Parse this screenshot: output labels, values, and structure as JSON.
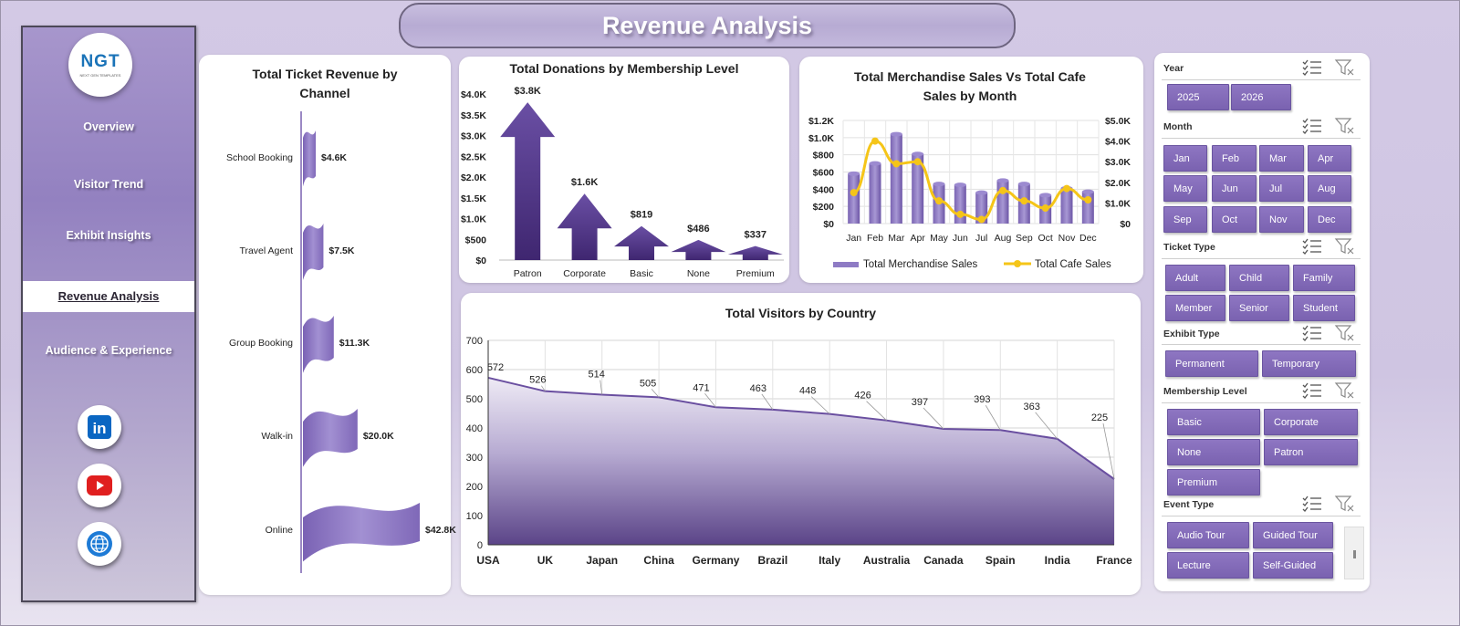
{
  "header": {
    "title": "Revenue Analysis"
  },
  "logo": {
    "text": "NGT",
    "subtitle": "NEXT GEN TEMPLATES"
  },
  "sidebar": {
    "items": [
      {
        "label": "Overview",
        "active": false
      },
      {
        "label": "Visitor Trend",
        "active": false
      },
      {
        "label": "Exhibit Insights",
        "active": false
      },
      {
        "label": "Revenue Analysis",
        "active": true
      },
      {
        "label": "Audience & Experience",
        "active": false
      }
    ],
    "social": [
      "linkedin-icon",
      "youtube-icon",
      "globe-icon"
    ]
  },
  "colors": {
    "accent": "#6a4fa0",
    "dark_purple": "#4b2f80",
    "cafe_line": "#f5c518",
    "background": "#d3c9e5"
  },
  "chart_data": [
    {
      "id": "ticket",
      "type": "bar",
      "title": "Total Ticket Revenue  by Channel",
      "categories": [
        "School Booking",
        "Travel Agent",
        "Group Booking",
        "Walk-in",
        "Online"
      ],
      "values": [
        4600,
        7500,
        11300,
        20000,
        42800
      ],
      "data_labels": [
        "$4.6K",
        "$7.5K",
        "$11.3K",
        "$20.0K",
        "$42.8K"
      ],
      "orientation": "horizontal"
    },
    {
      "id": "donations",
      "type": "bar",
      "title": "Total Donations  by Membership Level",
      "categories": [
        "Patron",
        "Corporate",
        "Basic",
        "None",
        "Premium"
      ],
      "values": [
        3800,
        1600,
        819,
        486,
        337
      ],
      "data_labels": [
        "$3.8K",
        "$1.6K",
        "$819",
        "$486",
        "$337"
      ],
      "ylim": [
        0,
        4000
      ],
      "yticks": [
        "$0",
        "$500",
        "$1.0K",
        "$1.5K",
        "$2.0K",
        "$2.5K",
        "$3.0K",
        "$3.5K",
        "$4.0K"
      ]
    },
    {
      "id": "merch",
      "type": "bar",
      "title": "Total Merchandise  Sales Vs Total Cafe Sales by Month",
      "categories": [
        "Jan",
        "Feb",
        "Mar",
        "Apr",
        "May",
        "Jun",
        "Jul",
        "Aug",
        "Sep",
        "Oct",
        "Nov",
        "Dec"
      ],
      "series": [
        {
          "name": "Total Merchandise Sales",
          "type": "bar",
          "axis": "left",
          "values": [
            580,
            700,
            1040,
            810,
            460,
            450,
            360,
            500,
            460,
            330,
            410,
            370
          ]
        },
        {
          "name": "Total Cafe Sales",
          "type": "line",
          "axis": "right",
          "values": [
            1500,
            4000,
            2900,
            3000,
            1100,
            450,
            200,
            1600,
            1100,
            750,
            1700,
            1150
          ]
        }
      ],
      "ylim": [
        0,
        1200
      ],
      "y2lim": [
        0,
        5000
      ],
      "yticks": [
        "$0",
        "$200",
        "$400",
        "$600",
        "$800",
        "$1.0K",
        "$1.2K"
      ],
      "y2ticks": [
        "$0",
        "$1.0K",
        "$2.0K",
        "$3.0K",
        "$4.0K",
        "$5.0K"
      ]
    },
    {
      "id": "visitors",
      "type": "area",
      "title": "Total Visitors by Country",
      "categories": [
        "USA",
        "UK",
        "Japan",
        "China",
        "Germany",
        "Brazil",
        "Italy",
        "Australia",
        "Canada",
        "Spain",
        "India",
        "France"
      ],
      "values": [
        572,
        526,
        514,
        505,
        471,
        463,
        448,
        426,
        397,
        393,
        363,
        225
      ],
      "ylim": [
        0,
        700
      ],
      "yticks": [
        "0",
        "100",
        "200",
        "300",
        "400",
        "500",
        "600",
        "700"
      ]
    }
  ],
  "slicers": [
    {
      "title": "Year",
      "items": [
        "2025",
        "2026"
      ]
    },
    {
      "title": "Month",
      "items": [
        "Jan",
        "Feb",
        "Mar",
        "Apr",
        "May",
        "Jun",
        "Jul",
        "Aug",
        "Sep",
        "Oct",
        "Nov",
        "Dec"
      ]
    },
    {
      "title": "Ticket Type",
      "items": [
        "Adult",
        "Child",
        "Family",
        "Member",
        "Senior",
        "Student"
      ]
    },
    {
      "title": "Exhibit Type",
      "items": [
        "Permanent",
        "Temporary"
      ]
    },
    {
      "title": "Membership Level",
      "items": [
        "Basic",
        "Corporate",
        "None",
        "Patron",
        "Premium"
      ]
    },
    {
      "title": "Event Type",
      "items": [
        "Audio Tour",
        "Guided Tour",
        "Lecture",
        "Self-Guided"
      ]
    }
  ]
}
